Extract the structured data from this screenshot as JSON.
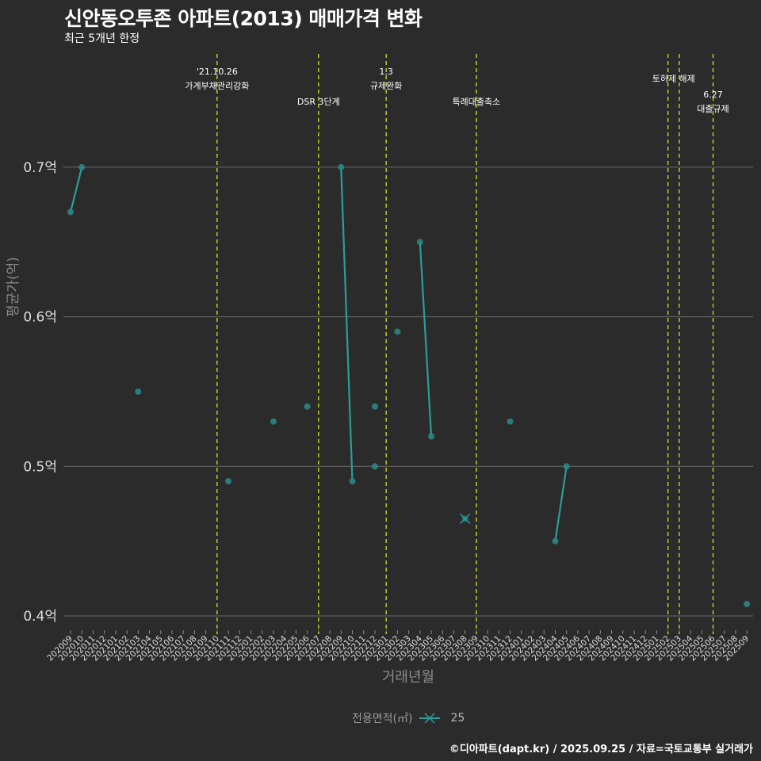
{
  "title": "신안동오투존 아파트(2013) 매매가격 변화",
  "subtitle": "최근 5개년 한정",
  "footer": "©디아파트(dapt.kr) / 2025.09.25 / 자료=국토교통부 실거래가",
  "legend": {
    "title": "전용면적(㎡)",
    "items": [
      {
        "label": "25",
        "color": "#2a9d9a"
      }
    ]
  },
  "colors": {
    "background": "#2b2b2b",
    "series": "#2a9d9a",
    "event_line": "#d4e02a",
    "grid": "#6a6a6a",
    "text": "#ffffff"
  },
  "chart_data": {
    "type": "line",
    "title": "신안동오투존 아파트(2013) 매매가격 변화",
    "subtitle": "최근 5개년 한정",
    "xlabel": "거래년월",
    "ylabel": "평균가(억)",
    "ylim": [
      0.39,
      0.73
    ],
    "yticks": [
      0.4,
      0.5,
      0.6,
      0.7
    ],
    "ytick_labels": [
      "0.4억",
      "0.5억",
      "0.6억",
      "0.7억"
    ],
    "grid": "horizontal",
    "legend_position": "bottom",
    "x_ticks": [
      "202009",
      "202010",
      "202011",
      "202012",
      "202101",
      "202102",
      "202103",
      "202104",
      "202105",
      "202106",
      "202107",
      "202108",
      "202109",
      "202110",
      "202111",
      "202112",
      "202201",
      "202202",
      "202203",
      "202204",
      "202205",
      "202206",
      "202207",
      "202208",
      "202209",
      "202210",
      "202211",
      "202212",
      "202301",
      "202302",
      "202303",
      "202304",
      "202305",
      "202306",
      "202307",
      "202308",
      "202309",
      "202310",
      "202311",
      "202312",
      "202401",
      "202402",
      "202403",
      "202404",
      "202405",
      "202406",
      "202407",
      "202408",
      "202409",
      "202410",
      "202411",
      "202412",
      "202501",
      "202502",
      "202503",
      "202504",
      "202505",
      "202506",
      "202507",
      "202508",
      "202509"
    ],
    "series": [
      {
        "name": "25",
        "points": [
          {
            "x": "202009",
            "y": 0.67
          },
          {
            "x": "202010",
            "y": 0.7
          },
          {
            "x": "202103",
            "y": 0.55
          },
          {
            "x": "202111",
            "y": 0.49
          },
          {
            "x": "202203",
            "y": 0.53
          },
          {
            "x": "202206",
            "y": 0.54
          },
          {
            "x": "202209",
            "y": 0.7
          },
          {
            "x": "202210",
            "y": 0.49
          },
          {
            "x": "202212",
            "y": 0.54
          },
          {
            "x": "202212",
            "y": 0.5
          },
          {
            "x": "202302",
            "y": 0.59
          },
          {
            "x": "202304",
            "y": 0.65
          },
          {
            "x": "202305",
            "y": 0.52
          },
          {
            "x": "202308",
            "y": 0.465,
            "marker": "x"
          },
          {
            "x": "202312",
            "y": 0.53
          },
          {
            "x": "202404",
            "y": 0.45
          },
          {
            "x": "202405",
            "y": 0.5
          },
          {
            "x": "202509",
            "y": 0.408
          }
        ],
        "segments": [
          [
            [
              "202009",
              0.67
            ],
            [
              "202010",
              0.7
            ]
          ],
          [
            [
              "202209",
              0.7
            ],
            [
              "202210",
              0.49
            ]
          ],
          [
            [
              "202304",
              0.65
            ],
            [
              "202305",
              0.52
            ]
          ],
          [
            [
              "202404",
              0.45
            ],
            [
              "202405",
              0.5
            ]
          ]
        ]
      }
    ],
    "events": [
      {
        "x": "202110",
        "label_lines": [
          "'21.10.26",
          "가계부채관리강화"
        ],
        "row": 0
      },
      {
        "x": "202207",
        "label_lines": [
          "DSR 3단계"
        ],
        "row": 2
      },
      {
        "x": "202301",
        "label_lines": [
          "1.3",
          "규제완화"
        ],
        "row": 0
      },
      {
        "x": "202309",
        "label_lines": [
          "특례대출축소"
        ],
        "row": 2
      },
      {
        "x": "202502",
        "label_lines": [],
        "row": 0
      },
      {
        "x": "202503",
        "label_lines": [
          "토허제 해제"
        ],
        "row": 1,
        "label_center_x": "202502.5"
      },
      {
        "x": "202506",
        "label_lines": [
          "6.27",
          "대출규제"
        ],
        "row": 1.5
      }
    ]
  }
}
